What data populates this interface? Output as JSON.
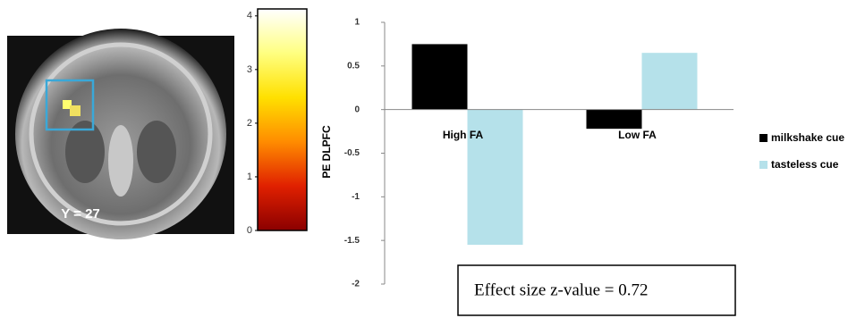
{
  "brain_label": "Y = 27",
  "chart_data": [
    {
      "type": "colorbar",
      "colors": [
        "#8b0000",
        "#e02000",
        "#ff8c00",
        "#ffe000",
        "#ffff80",
        "#ffffff"
      ],
      "ylim": [
        0,
        4.13
      ],
      "yticks": [
        0,
        1,
        2,
        3,
        4
      ]
    },
    {
      "type": "bar",
      "ylabel": "PE DLPFC",
      "categories": [
        "High FA",
        "Low FA"
      ],
      "series": [
        {
          "name": "milkshake cue",
          "color": "#000000",
          "values": [
            0.75,
            -0.22
          ]
        },
        {
          "name": "tasteless cue",
          "color": "#b5e1ea",
          "values": [
            -1.55,
            0.65
          ]
        }
      ],
      "ylim": [
        -2,
        1
      ],
      "yticks": [
        -2,
        -1.5,
        -1,
        -0.5,
        0,
        0.5,
        1
      ],
      "annotation": "Effect size z-value = 0.72"
    }
  ]
}
